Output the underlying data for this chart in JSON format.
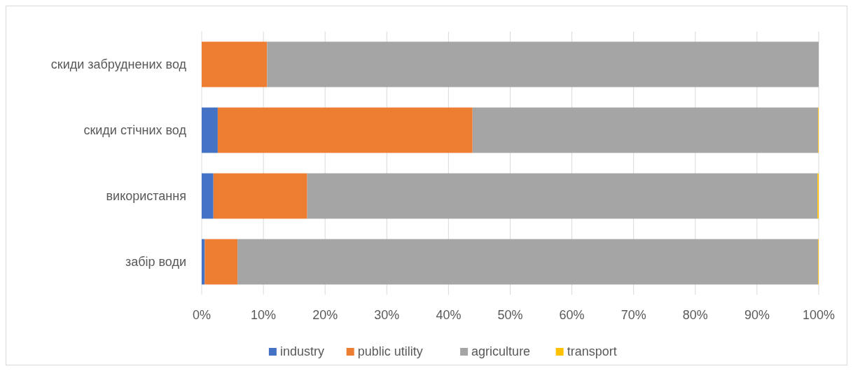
{
  "chart_data": {
    "type": "bar",
    "orientation": "horizontal",
    "stacked": true,
    "categories": [
      "скиди забруднених вод",
      "скиди стічних вод",
      "використання",
      "забір води"
    ],
    "series": [
      {
        "name": "industry",
        "color": "#4472c4",
        "values": [
          0,
          2.6,
          1.9,
          0.5
        ]
      },
      {
        "name": "public utility",
        "color": "#ed7d31",
        "values": [
          10.6,
          41.3,
          15.2,
          5.3
        ]
      },
      {
        "name": "agriculture",
        "color": "#a5a5a5",
        "values": [
          89.4,
          56.0,
          82.7,
          94.1
        ]
      },
      {
        "name": "transport",
        "color": "#ffc000",
        "values": [
          0,
          0.1,
          0.2,
          0.1
        ]
      }
    ],
    "xlim": [
      0,
      100
    ],
    "xticks": [
      {
        "value": 0,
        "label": "0%"
      },
      {
        "value": 10,
        "label": "10%"
      },
      {
        "value": 20,
        "label": "20%"
      },
      {
        "value": 30,
        "label": "30%"
      },
      {
        "value": 40,
        "label": "40%"
      },
      {
        "value": 50,
        "label": "50%"
      },
      {
        "value": 60,
        "label": "60%"
      },
      {
        "value": 70,
        "label": "70%"
      },
      {
        "value": 80,
        "label": "80%"
      },
      {
        "value": 90,
        "label": "90%"
      },
      {
        "value": 100,
        "label": "100%"
      }
    ],
    "grid": "x",
    "legend": "bottom"
  }
}
